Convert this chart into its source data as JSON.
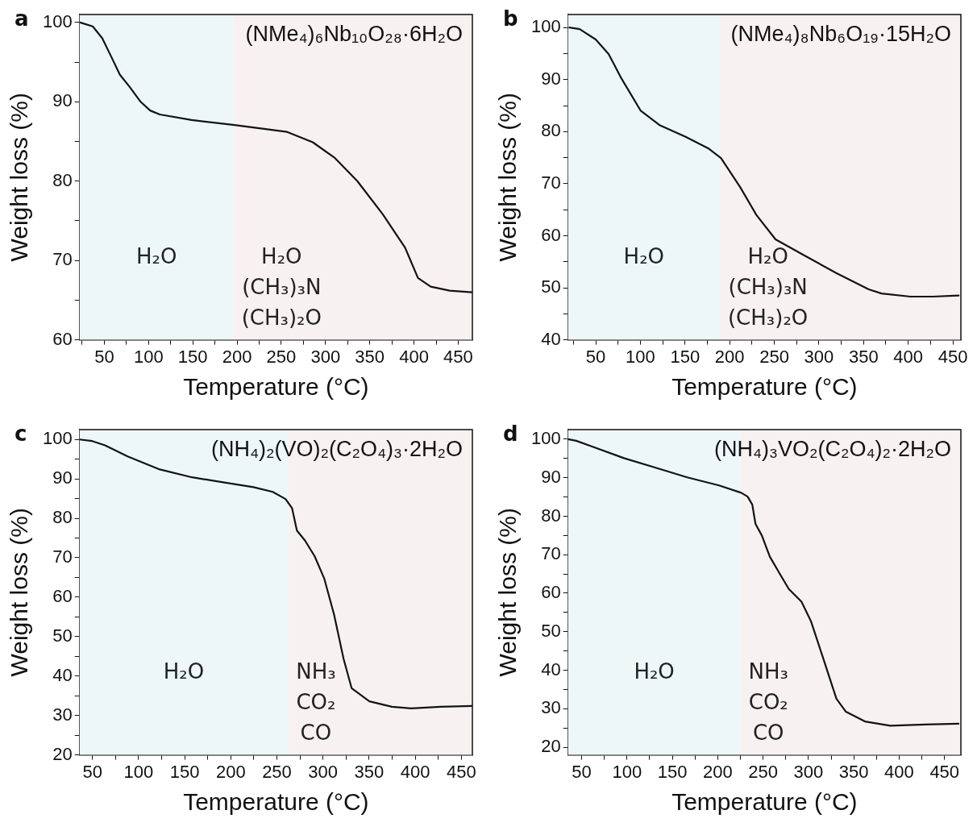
{
  "chart_data": [
    {
      "type": "line",
      "title": "(NMe₄)₆Nb₁₀O₂₈·6H₂O",
      "xlabel": "Temperature (°C)",
      "ylabel": "Weight loss (%)",
      "annotations": [
        "a"
      ],
      "marker": "none",
      "xlim": [
        22,
        466
      ],
      "ylim": [
        60,
        101
      ],
      "xticks": [
        {
          "value": 25,
          "label": null
        },
        50,
        {
          "value": 75,
          "label": null
        },
        100,
        {
          "value": 125,
          "label": null
        },
        150,
        {
          "value": 175,
          "label": null
        },
        200,
        {
          "value": 225,
          "label": null
        },
        250,
        {
          "value": 275,
          "label": null
        },
        300,
        {
          "value": 325,
          "label": null
        },
        350,
        {
          "value": 375,
          "label": null
        },
        400,
        {
          "value": 425,
          "label": null
        },
        450
      ],
      "yticks": [
        60,
        {
          "value": 65,
          "label": null
        },
        70,
        {
          "value": 75,
          "label": null
        },
        80,
        {
          "value": 85,
          "label": null
        },
        90,
        {
          "value": 95,
          "label": null
        },
        100
      ],
      "bands": [
        {
          "axis": "x",
          "from": 22,
          "to": 196,
          "label": "H₂O",
          "color": "#eef7f8"
        },
        {
          "axis": "x",
          "from": 196,
          "to": 466,
          "label": "H₂O\n(CH₃)₃N\n(CH₃)₂O",
          "color": "#f8f1f1"
        }
      ],
      "series": [
        {
          "color": "#111414",
          "x": [
            22.6,
            36.9,
            47.7,
            58.6,
            67.6,
            78.5,
            91,
            101.8,
            112.6,
            148.6,
            195.5,
            256.7,
            285.6,
            310.8,
            336,
            364.9,
            390,
            404.5,
            418.9,
            440.5,
            465.7
          ],
          "values": [
            100,
            99.5,
            98.0,
            95.5,
            93.4,
            91.9,
            90.0,
            88.9,
            88.4,
            87.7,
            87.1,
            86.2,
            84.9,
            82.9,
            80.0,
            75.8,
            71.6,
            67.8,
            66.7,
            66.2,
            66.0
          ]
        }
      ]
    },
    {
      "type": "line",
      "title": "(NMe₄)₈Nb₆O₁₉·15H₂O",
      "xlabel": "Temperature (°C)",
      "ylabel": "Weight loss (%)",
      "annotations": [
        "b"
      ],
      "marker": "none",
      "xlim": [
        19,
        459
      ],
      "ylim": [
        40,
        102.5
      ],
      "xticks": [
        {
          "value": 25,
          "label": null
        },
        50,
        {
          "value": 75,
          "label": null
        },
        100,
        {
          "value": 125,
          "label": null
        },
        150,
        {
          "value": 175,
          "label": null
        },
        200,
        {
          "value": 225,
          "label": null
        },
        250,
        {
          "value": 275,
          "label": null
        },
        300,
        {
          "value": 325,
          "label": null
        },
        350,
        {
          "value": 375,
          "label": null
        },
        400,
        {
          "value": 425,
          "label": null
        },
        450
      ],
      "yticks": [
        40,
        {
          "value": 45,
          "label": null
        },
        50,
        {
          "value": 55,
          "label": null
        },
        60,
        {
          "value": 65,
          "label": null
        },
        70,
        {
          "value": 75,
          "label": null
        },
        80,
        {
          "value": 85,
          "label": null
        },
        90,
        {
          "value": 95,
          "label": null
        },
        100
      ],
      "bands": [
        {
          "axis": "x",
          "from": 19,
          "to": 189,
          "label": "H₂O",
          "color": "#eef7f8"
        },
        {
          "axis": "x",
          "from": 189,
          "to": 459,
          "label": "H₂O\n(CH₃)₃N\n(CH₃)₂O",
          "color": "#f8f1f1"
        }
      ],
      "series": [
        {
          "color": "#111414",
          "x": [
            20.5,
            32,
            50,
            64.4,
            78.8,
            100.4,
            122,
            150.7,
            175.9,
            190.3,
            211.9,
            229.9,
            251.4,
            283.8,
            319.8,
            355.8,
            370.1,
            402.5,
            427.7,
            456.5
          ],
          "values": [
            100,
            99.7,
            97.7,
            94.9,
            90.2,
            84.0,
            81.2,
            79.0,
            76.8,
            74.9,
            69.3,
            64.0,
            59.3,
            56.2,
            52.8,
            49.7,
            48.9,
            48.3,
            48.3,
            48.5
          ]
        }
      ]
    },
    {
      "type": "line",
      "title": "(NH₄)₂(VO)₂(C₂O₄)₃·2H₂O",
      "xlabel": "Temperature (°C)",
      "ylabel": "Weight loss (%)",
      "annotations": [
        "c"
      ],
      "marker": "none",
      "xlim": [
        36,
        462
      ],
      "ylim": [
        20,
        102.5
      ],
      "xticks": [
        50,
        {
          "value": 75,
          "label": null
        },
        100,
        {
          "value": 125,
          "label": null
        },
        150,
        {
          "value": 175,
          "label": null
        },
        200,
        {
          "value": 225,
          "label": null
        },
        250,
        {
          "value": 275,
          "label": null
        },
        300,
        {
          "value": 325,
          "label": null
        },
        350,
        {
          "value": 375,
          "label": null
        },
        400,
        {
          "value": 425,
          "label": null
        },
        450
      ],
      "yticks": [
        20,
        {
          "value": 25,
          "label": null
        },
        30,
        {
          "value": 35,
          "label": null
        },
        40,
        {
          "value": 45,
          "label": null
        },
        50,
        {
          "value": 55,
          "label": null
        },
        60,
        {
          "value": 65,
          "label": null
        },
        70,
        {
          "value": 75,
          "label": null
        },
        80,
        {
          "value": 85,
          "label": null
        },
        90,
        {
          "value": 95,
          "label": null
        },
        100
      ],
      "bands": [
        {
          "axis": "x",
          "from": 36,
          "to": 262,
          "label": "H₂O",
          "color": "#eef7f8"
        },
        {
          "axis": "x",
          "from": 262,
          "to": 462,
          "label": "NH₃\nCO₂\nCO",
          "color": "#f8f1f1"
        }
      ],
      "series": [
        {
          "color": "#111414",
          "x": [
            36,
            49.7,
            63.6,
            88.1,
            123,
            158,
            193,
            224.5,
            245.5,
            259.4,
            266.4,
            271.7,
            280.4,
            290.9,
            301.4,
            311.9,
            322.4,
            331.1,
            350.3,
            374.8,
            395.8,
            427.3,
            461.5
          ],
          "values": [
            100,
            99.6,
            98.5,
            95.7,
            92.4,
            90.4,
            89.1,
            87.9,
            86.7,
            84.9,
            82.6,
            76.9,
            74.4,
            70.4,
            64.7,
            55.7,
            44.3,
            36.9,
            33.6,
            32.2,
            31.8,
            32.2,
            32.4
          ]
        }
      ]
    },
    {
      "type": "line",
      "title": "(NH₄)₃VO₂(C₂O₄)₂·2H₂O",
      "xlabel": "Temperature (°C)",
      "ylabel": "Weight loss (%)",
      "annotations": [
        "d"
      ],
      "marker": "none",
      "xlim": [
        35,
        468
      ],
      "ylim": [
        18,
        102.5
      ],
      "xticks": [
        50,
        {
          "value": 75,
          "label": null
        },
        100,
        {
          "value": 125,
          "label": null
        },
        150,
        {
          "value": 175,
          "label": null
        },
        200,
        {
          "value": 225,
          "label": null
        },
        250,
        {
          "value": 275,
          "label": null
        },
        300,
        {
          "value": 325,
          "label": null
        },
        350,
        {
          "value": 375,
          "label": null
        },
        400,
        {
          "value": 425,
          "label": null
        },
        450
      ],
      "yticks": [
        20,
        {
          "value": 25,
          "label": null
        },
        30,
        {
          "value": 35,
          "label": null
        },
        40,
        {
          "value": 45,
          "label": null
        },
        50,
        {
          "value": 55,
          "label": null
        },
        60,
        {
          "value": 65,
          "label": null
        },
        70,
        {
          "value": 75,
          "label": null
        },
        80,
        {
          "value": 85,
          "label": null
        },
        90,
        {
          "value": 95,
          "label": null
        },
        100
      ],
      "bands": [
        {
          "axis": "x",
          "from": 35,
          "to": 225,
          "label": "H₂O",
          "color": "#eef7f8"
        },
        {
          "axis": "x",
          "from": 225,
          "to": 468,
          "label": "NH₃\nCO₂\nCO",
          "color": "#f8f1f1"
        }
      ],
      "series": [
        {
          "color": "#111414",
          "x": [
            35,
            44,
            61.5,
            96.5,
            131.5,
            166.4,
            201.4,
            225.9,
            232.9,
            238.1,
            241.6,
            248.6,
            257.4,
            267.8,
            278.3,
            292.3,
            302.8,
            316.8,
            330.8,
            341.3,
            362.2,
            390.2,
            428.7,
            465.4
          ],
          "values": [
            100,
            99.6,
            98.1,
            95.1,
            92.6,
            90.1,
            88.0,
            86.1,
            85.1,
            83.0,
            78.0,
            75.0,
            69.5,
            65.3,
            61.1,
            57.8,
            52.7,
            42.7,
            32.6,
            29.2,
            26.7,
            25.6,
            25.9,
            26.1
          ]
        }
      ]
    }
  ]
}
